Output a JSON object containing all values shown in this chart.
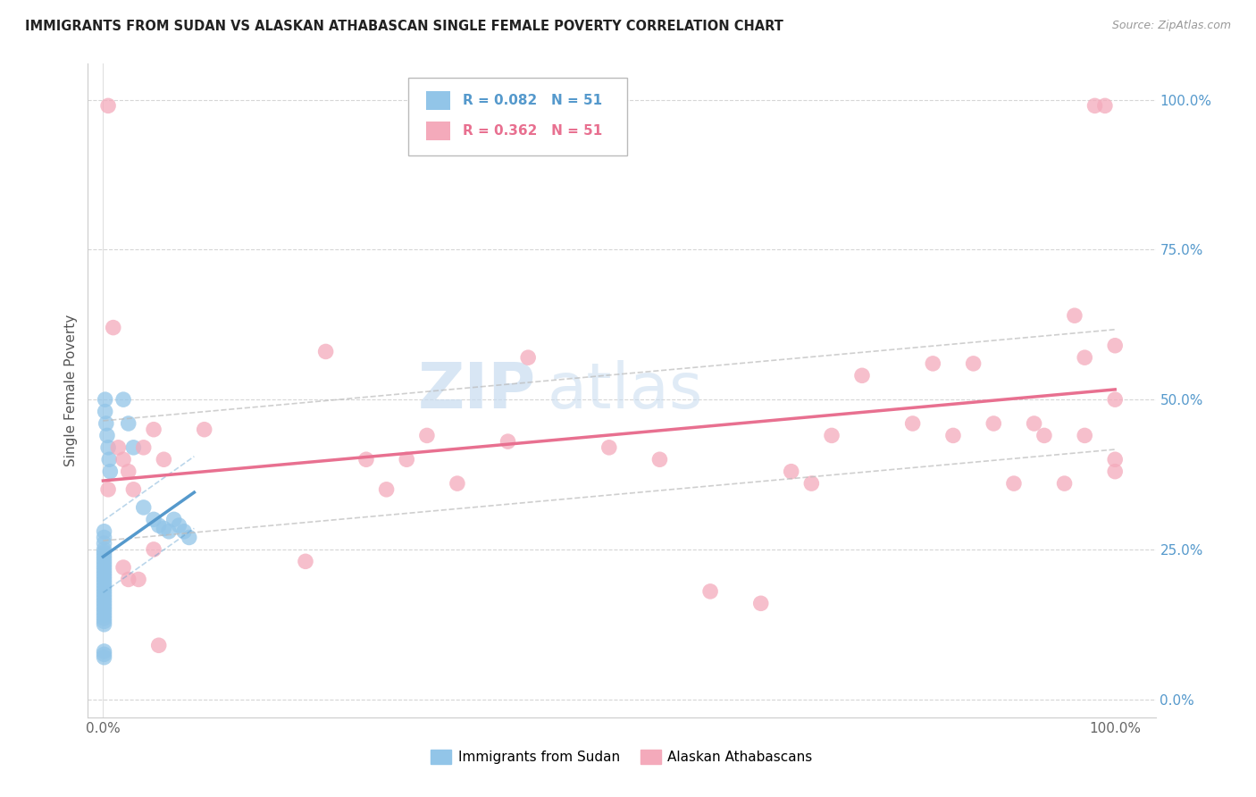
{
  "title": "IMMIGRANTS FROM SUDAN VS ALASKAN ATHABASCAN SINGLE FEMALE POVERTY CORRELATION CHART",
  "source": "Source: ZipAtlas.com",
  "ylabel": "Single Female Poverty",
  "legend_label1": "Immigrants from Sudan",
  "legend_label2": "Alaskan Athabascans",
  "R1": "R = 0.082",
  "N1": "N = 51",
  "R2": "R = 0.362",
  "N2": "N = 51",
  "watermark_zip": "ZIP",
  "watermark_atlas": "atlas",
  "blue_color": "#92C5E8",
  "pink_color": "#F4AABB",
  "blue_line_color": "#5599CC",
  "pink_line_color": "#E87090",
  "blue_x": [
    0.001,
    0.001,
    0.001,
    0.001,
    0.001,
    0.001,
    0.001,
    0.001,
    0.001,
    0.001,
    0.001,
    0.001,
    0.001,
    0.001,
    0.001,
    0.001,
    0.001,
    0.001,
    0.001,
    0.001,
    0.001,
    0.001,
    0.001,
    0.001,
    0.001,
    0.001,
    0.001,
    0.001,
    0.001,
    0.001,
    0.001,
    0.001,
    0.002,
    0.002,
    0.003,
    0.004,
    0.005,
    0.006,
    0.007,
    0.02,
    0.025,
    0.03,
    0.04,
    0.05,
    0.055,
    0.06,
    0.065,
    0.07,
    0.075,
    0.08,
    0.085
  ],
  "blue_y": [
    0.28,
    0.27,
    0.26,
    0.25,
    0.245,
    0.24,
    0.235,
    0.23,
    0.225,
    0.22,
    0.215,
    0.21,
    0.205,
    0.2,
    0.195,
    0.19,
    0.185,
    0.18,
    0.175,
    0.17,
    0.165,
    0.16,
    0.155,
    0.15,
    0.145,
    0.14,
    0.135,
    0.13,
    0.125,
    0.08,
    0.075,
    0.07,
    0.5,
    0.48,
    0.46,
    0.44,
    0.42,
    0.4,
    0.38,
    0.5,
    0.46,
    0.42,
    0.32,
    0.3,
    0.29,
    0.285,
    0.28,
    0.3,
    0.29,
    0.28,
    0.27
  ],
  "pink_x": [
    0.005,
    0.005,
    0.01,
    0.015,
    0.02,
    0.02,
    0.025,
    0.025,
    0.03,
    0.035,
    0.04,
    0.05,
    0.05,
    0.055,
    0.06,
    0.1,
    0.2,
    0.22,
    0.26,
    0.28,
    0.3,
    0.32,
    0.35,
    0.4,
    0.42,
    0.5,
    0.55,
    0.6,
    0.65,
    0.68,
    0.7,
    0.72,
    0.75,
    0.8,
    0.82,
    0.84,
    0.86,
    0.88,
    0.9,
    0.92,
    0.93,
    0.95,
    0.96,
    0.97,
    0.97,
    0.98,
    0.99,
    1.0,
    1.0,
    1.0,
    1.0
  ],
  "pink_y": [
    0.99,
    0.35,
    0.62,
    0.42,
    0.4,
    0.22,
    0.38,
    0.2,
    0.35,
    0.2,
    0.42,
    0.45,
    0.25,
    0.09,
    0.4,
    0.45,
    0.23,
    0.58,
    0.4,
    0.35,
    0.4,
    0.44,
    0.36,
    0.43,
    0.57,
    0.42,
    0.4,
    0.18,
    0.16,
    0.38,
    0.36,
    0.44,
    0.54,
    0.46,
    0.56,
    0.44,
    0.56,
    0.46,
    0.36,
    0.46,
    0.44,
    0.36,
    0.64,
    0.57,
    0.44,
    0.99,
    0.99,
    0.59,
    0.5,
    0.4,
    0.38
  ]
}
